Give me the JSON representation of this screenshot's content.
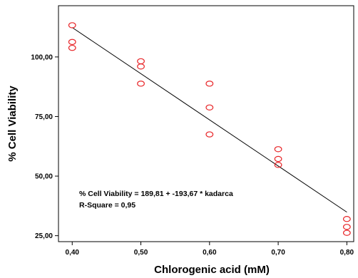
{
  "chart_data": {
    "type": "scatter",
    "xlabel": "Chlorogenic acid (mM)",
    "ylabel": "% Cell Viability",
    "xlim": [
      0.38,
      0.81
    ],
    "ylim": [
      22.5,
      121.5
    ],
    "x_ticks": [
      0.4,
      0.5,
      0.6,
      0.7,
      0.8
    ],
    "x_tick_labels": [
      "0,40",
      "0,50",
      "0,60",
      "0,70",
      "0,80"
    ],
    "y_ticks": [
      25,
      50,
      75,
      100
    ],
    "y_tick_labels": [
      "25,00",
      "50,00",
      "75,00",
      "100,00"
    ],
    "grid": false,
    "series": [
      {
        "marker": "open-circle",
        "color": "#e8282b",
        "points": [
          {
            "x": 0.4,
            "y": 113.3
          },
          {
            "x": 0.4,
            "y": 106.3
          },
          {
            "x": 0.4,
            "y": 103.8
          },
          {
            "x": 0.5,
            "y": 98.2
          },
          {
            "x": 0.5,
            "y": 96.0
          },
          {
            "x": 0.5,
            "y": 88.8
          },
          {
            "x": 0.6,
            "y": 88.8
          },
          {
            "x": 0.6,
            "y": 78.8
          },
          {
            "x": 0.6,
            "y": 67.5
          },
          {
            "x": 0.7,
            "y": 61.3
          },
          {
            "x": 0.7,
            "y": 57.2
          },
          {
            "x": 0.7,
            "y": 54.7
          },
          {
            "x": 0.8,
            "y": 32.0
          },
          {
            "x": 0.8,
            "y": 28.7
          },
          {
            "x": 0.8,
            "y": 26.2
          }
        ]
      }
    ],
    "fit_line": {
      "intercept": 189.81,
      "slope": -193.67,
      "x_range": [
        0.4,
        0.8
      ],
      "color": "#000000"
    },
    "annotations": [
      "% Cell Viability = 189,81 + -193,67 * kadarca",
      "R-Square = 0,95"
    ]
  }
}
